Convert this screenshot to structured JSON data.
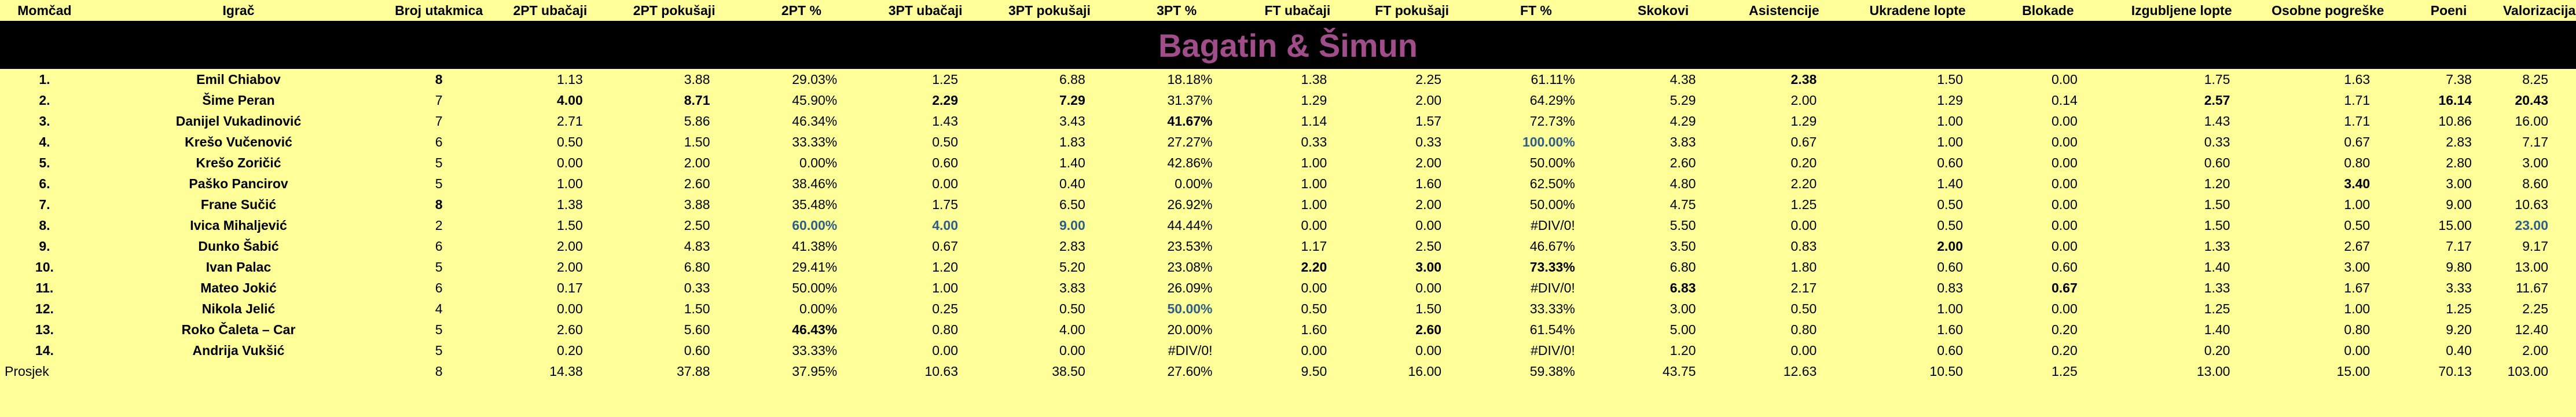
{
  "columns": [
    "Momčad",
    "Igrač",
    "Broj utakmica",
    "2PT ubačaji",
    "2PT pokušaji",
    "2PT %",
    "3PT ubačaji",
    "3PT pokušaji",
    "3PT %",
    "FT ubačaji",
    "FT pokušaji",
    "FT %",
    "Skokovi",
    "Asistencije",
    "Ukradene lopte",
    "Blokade",
    "Izgubljene lopte",
    "Osobne pogreške",
    "Poeni",
    "Valorizacija"
  ],
  "team_banner": "Bagatin & Šimun",
  "rows": [
    {
      "rank": "1.",
      "name": "Emil Chiabov",
      "cells": [
        "8",
        "1.13",
        "3.88",
        "29.03%",
        "1.25",
        "6.88",
        "18.18%",
        "1.38",
        "2.25",
        "61.11%",
        "4.38",
        "2.38",
        "1.50",
        "0.00",
        "1.75",
        "1.63",
        "7.38",
        "8.25"
      ]
    },
    {
      "rank": "2.",
      "name": "Šime Peran",
      "cells": [
        "7",
        "4.00",
        "8.71",
        "45.90%",
        "2.29",
        "7.29",
        "31.37%",
        "1.29",
        "2.00",
        "64.29%",
        "5.29",
        "2.00",
        "1.29",
        "0.14",
        "2.57",
        "1.71",
        "16.14",
        "20.43"
      ]
    },
    {
      "rank": "3.",
      "name": "Danijel Vukadinović",
      "cells": [
        "7",
        "2.71",
        "5.86",
        "46.34%",
        "1.43",
        "3.43",
        "41.67%",
        "1.14",
        "1.57",
        "72.73%",
        "4.29",
        "1.29",
        "1.00",
        "0.00",
        "1.43",
        "1.71",
        "10.86",
        "16.00"
      ]
    },
    {
      "rank": "4.",
      "name": "Krešo Vučenović",
      "cells": [
        "6",
        "0.50",
        "1.50",
        "33.33%",
        "0.50",
        "1.83",
        "27.27%",
        "0.33",
        "0.33",
        "100.00%",
        "3.83",
        "0.67",
        "1.00",
        "0.00",
        "0.33",
        "0.67",
        "2.83",
        "7.17"
      ]
    },
    {
      "rank": "5.",
      "name": "Krešo Zoričić",
      "cells": [
        "5",
        "0.00",
        "2.00",
        "0.00%",
        "0.60",
        "1.40",
        "42.86%",
        "1.00",
        "2.00",
        "50.00%",
        "2.60",
        "0.20",
        "0.60",
        "0.00",
        "0.60",
        "0.80",
        "2.80",
        "3.00"
      ]
    },
    {
      "rank": "6.",
      "name": "Paško Pancirov",
      "cells": [
        "5",
        "1.00",
        "2.60",
        "38.46%",
        "0.00",
        "0.40",
        "0.00%",
        "1.00",
        "1.60",
        "62.50%",
        "4.80",
        "2.20",
        "1.40",
        "0.00",
        "1.20",
        "3.40",
        "3.00",
        "8.60"
      ]
    },
    {
      "rank": "7.",
      "name": "Frane Sučić",
      "cells": [
        "8",
        "1.38",
        "3.88",
        "35.48%",
        "1.75",
        "6.50",
        "26.92%",
        "1.00",
        "2.00",
        "50.00%",
        "4.75",
        "1.25",
        "0.50",
        "0.00",
        "1.50",
        "1.00",
        "9.00",
        "10.63"
      ]
    },
    {
      "rank": "8.",
      "name": "Ivica Mihaljević",
      "cells": [
        "2",
        "1.50",
        "2.50",
        "60.00%",
        "4.00",
        "9.00",
        "44.44%",
        "0.00",
        "0.00",
        "#DIV/0!",
        "5.50",
        "0.00",
        "0.50",
        "0.00",
        "1.50",
        "0.50",
        "15.00",
        "23.00"
      ]
    },
    {
      "rank": "9.",
      "name": "Dunko Šabić",
      "cells": [
        "6",
        "2.00",
        "4.83",
        "41.38%",
        "0.67",
        "2.83",
        "23.53%",
        "1.17",
        "2.50",
        "46.67%",
        "3.50",
        "0.83",
        "2.00",
        "0.00",
        "1.33",
        "2.67",
        "7.17",
        "9.17"
      ]
    },
    {
      "rank": "10.",
      "name": "Ivan Palac",
      "cells": [
        "5",
        "2.00",
        "6.80",
        "29.41%",
        "1.20",
        "5.20",
        "23.08%",
        "2.20",
        "3.00",
        "73.33%",
        "6.80",
        "1.80",
        "0.60",
        "0.60",
        "1.40",
        "3.00",
        "9.80",
        "13.00"
      ]
    },
    {
      "rank": "11.",
      "name": "Mateo Jokić",
      "cells": [
        "6",
        "0.17",
        "0.33",
        "50.00%",
        "1.00",
        "3.83",
        "26.09%",
        "0.00",
        "0.00",
        "#DIV/0!",
        "6.83",
        "2.17",
        "0.83",
        "0.67",
        "1.33",
        "1.67",
        "3.33",
        "11.67"
      ]
    },
    {
      "rank": "12.",
      "name": "Nikola Jelić",
      "cells": [
        "4",
        "0.00",
        "1.50",
        "0.00%",
        "0.25",
        "0.50",
        "50.00%",
        "0.50",
        "1.50",
        "33.33%",
        "3.00",
        "0.50",
        "1.00",
        "0.00",
        "1.25",
        "1.00",
        "1.25",
        "2.25"
      ]
    },
    {
      "rank": "13.",
      "name": "Roko Čaleta – Car",
      "cells": [
        "5",
        "2.60",
        "5.60",
        "46.43%",
        "0.80",
        "4.00",
        "20.00%",
        "1.60",
        "2.60",
        "61.54%",
        "5.00",
        "0.80",
        "1.60",
        "0.20",
        "1.40",
        "0.80",
        "9.20",
        "12.40"
      ]
    },
    {
      "rank": "14.",
      "name": "Andrija Vukšić",
      "cells": [
        "5",
        "0.20",
        "0.60",
        "33.33%",
        "0.00",
        "0.00",
        "#DIV/0!",
        "0.00",
        "0.00",
        "#DIV/0!",
        "1.20",
        "0.00",
        "0.60",
        "0.20",
        "0.20",
        "0.00",
        "0.40",
        "2.00"
      ]
    }
  ],
  "average": {
    "label": "Prosjek",
    "cells": [
      "8",
      "14.38",
      "37.88",
      "37.95%",
      "10.63",
      "38.50",
      "27.60%",
      "9.50",
      "16.00",
      "59.38%",
      "43.75",
      "12.63",
      "10.50",
      "1.25",
      "13.00",
      "15.00",
      "70.13",
      "103.00"
    ]
  },
  "emphasis": {
    "bold": [
      [
        0,
        0
      ],
      [
        0,
        11
      ],
      [
        1,
        1
      ],
      [
        1,
        2
      ],
      [
        1,
        4
      ],
      [
        1,
        5
      ],
      [
        1,
        14
      ],
      [
        1,
        16
      ],
      [
        1,
        17
      ],
      [
        2,
        6
      ],
      [
        6,
        0
      ],
      [
        8,
        12
      ],
      [
        9,
        7
      ],
      [
        9,
        8
      ],
      [
        9,
        9
      ],
      [
        10,
        10
      ],
      [
        10,
        13
      ],
      [
        12,
        3
      ],
      [
        12,
        8
      ],
      [
        5,
        15
      ]
    ],
    "blue": [
      [
        3,
        9
      ],
      [
        7,
        3
      ],
      [
        7,
        4
      ],
      [
        7,
        5
      ],
      [
        7,
        17
      ],
      [
        11,
        6
      ]
    ]
  },
  "colors": {
    "background": "#ffff99",
    "banner_background": "#000000",
    "banner_text": "#a04d8a",
    "highlight_blue": "#2e5e86"
  }
}
